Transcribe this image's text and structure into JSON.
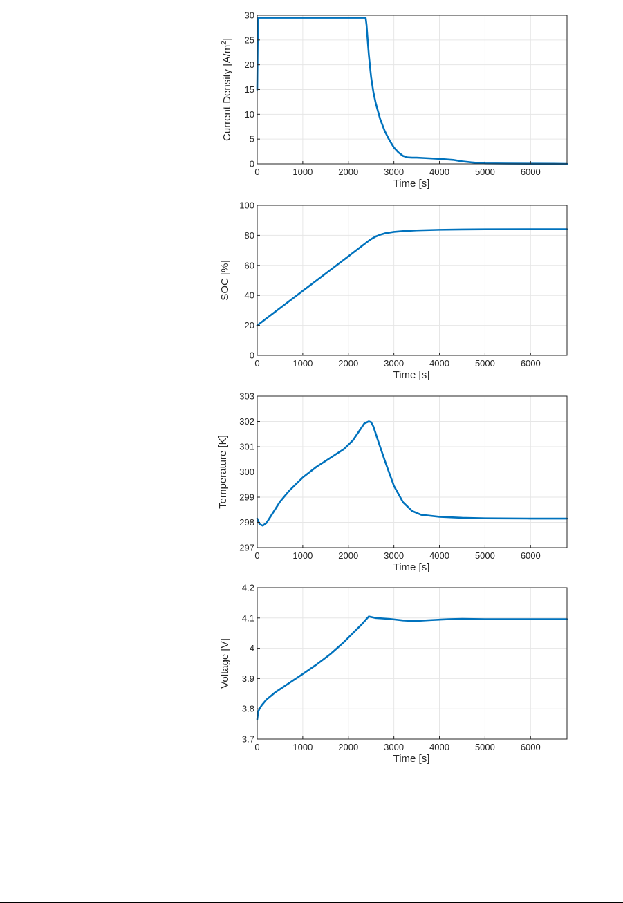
{
  "colors": {
    "series": "#0072bd",
    "grid": "#e6e6e6",
    "axes": "#262626"
  },
  "chart_data": [
    {
      "type": "line",
      "title": "",
      "xlabel": "Time [s]",
      "ylabel": "Current Density [A/m",
      "ylabel_sup": "2",
      "ylabel_end": "]",
      "xlim": [
        0,
        6800
      ],
      "ylim": [
        0,
        30
      ],
      "xticks": [
        0,
        1000,
        2000,
        3000,
        4000,
        5000,
        6000
      ],
      "yticks": [
        0,
        5,
        10,
        15,
        20,
        25,
        30
      ],
      "grid": true,
      "series": [
        {
          "x": [
            0,
            15,
            30,
            2380,
            2400,
            2420,
            2450,
            2500,
            2550,
            2600,
            2700,
            2800,
            2900,
            3000,
            3100,
            3200,
            3300,
            3400,
            3500,
            3700,
            4000,
            4300,
            4500,
            4700,
            4900,
            5000,
            5500,
            6000,
            6500,
            6800
          ],
          "y": [
            15,
            29.5,
            29.5,
            29.5,
            28.0,
            25.5,
            22.0,
            17.5,
            14.5,
            12.3,
            9.0,
            6.6,
            4.8,
            3.3,
            2.3,
            1.6,
            1.3,
            1.25,
            1.25,
            1.15,
            1.0,
            0.8,
            0.5,
            0.3,
            0.15,
            0.1,
            0.06,
            0.04,
            0.02,
            0.0
          ]
        }
      ]
    },
    {
      "type": "line",
      "title": "",
      "xlabel": "Time [s]",
      "ylabel": "SOC [%]",
      "xlim": [
        0,
        6800
      ],
      "ylim": [
        0,
        100
      ],
      "xticks": [
        0,
        1000,
        2000,
        3000,
        4000,
        5000,
        6000
      ],
      "yticks": [
        0,
        20,
        40,
        60,
        80,
        100
      ],
      "grid": true,
      "series": [
        {
          "x": [
            0,
            500,
            1000,
            1500,
            2000,
            2400,
            2500,
            2600,
            2700,
            2800,
            3000,
            3200,
            3500,
            4000,
            4500,
            5000,
            6000,
            6800
          ],
          "y": [
            20,
            31.5,
            43,
            54.5,
            66,
            75.3,
            77.5,
            79.2,
            80.4,
            81.3,
            82.3,
            82.8,
            83.3,
            83.7,
            83.9,
            84.0,
            84.1,
            84.1
          ]
        }
      ]
    },
    {
      "type": "line",
      "title": "",
      "xlabel": "Time [s]",
      "ylabel": "Temperature [K]",
      "xlim": [
        0,
        6800
      ],
      "ylim": [
        297,
        303
      ],
      "xticks": [
        0,
        1000,
        2000,
        3000,
        4000,
        5000,
        6000
      ],
      "yticks": [
        297,
        298,
        299,
        300,
        301,
        302,
        303
      ],
      "grid": true,
      "series": [
        {
          "x": [
            0,
            50,
            120,
            200,
            300,
            500,
            700,
            1000,
            1300,
            1600,
            1900,
            2100,
            2250,
            2350,
            2450,
            2500,
            2550,
            2650,
            2800,
            3000,
            3200,
            3400,
            3600,
            4000,
            4500,
            5000,
            6000,
            6800
          ],
          "y": [
            298.15,
            297.93,
            297.87,
            297.97,
            298.25,
            298.82,
            299.25,
            299.78,
            300.2,
            300.55,
            300.9,
            301.25,
            301.65,
            301.92,
            302.0,
            301.97,
            301.8,
            301.25,
            300.45,
            299.45,
            298.8,
            298.45,
            298.3,
            298.22,
            298.18,
            298.16,
            298.15,
            298.15
          ]
        }
      ]
    },
    {
      "type": "line",
      "title": "",
      "xlabel": "Time [s]",
      "ylabel": "Voltage [V]",
      "xlim": [
        0,
        6800
      ],
      "ylim": [
        3.7,
        4.2
      ],
      "xticks": [
        0,
        1000,
        2000,
        3000,
        4000,
        5000,
        6000
      ],
      "yticks": [
        3.7,
        3.8,
        3.9,
        4,
        4.1,
        4.2
      ],
      "grid": true,
      "series": [
        {
          "x": [
            0,
            20,
            50,
            100,
            200,
            400,
            700,
            1000,
            1300,
            1600,
            1900,
            2100,
            2300,
            2400,
            2450,
            2600,
            2900,
            3200,
            3450,
            3800,
            4200,
            4500,
            5000,
            6000,
            6800
          ],
          "y": [
            3.765,
            3.79,
            3.8,
            3.812,
            3.83,
            3.855,
            3.885,
            3.915,
            3.946,
            3.98,
            4.02,
            4.05,
            4.08,
            4.097,
            4.105,
            4.1,
            4.097,
            4.092,
            4.09,
            4.093,
            4.096,
            4.097,
            4.096,
            4.096,
            4.096
          ]
        }
      ]
    }
  ]
}
